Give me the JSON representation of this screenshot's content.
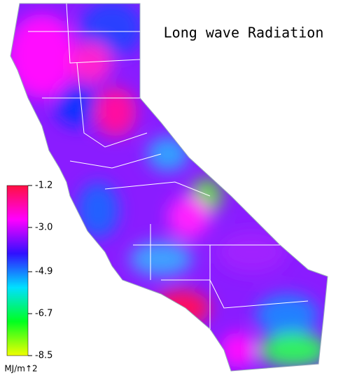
{
  "title": "Long wave Radiation",
  "colorbar": {
    "lim": [
      -8.5,
      -1.2
    ],
    "ticks": [
      -1.2,
      {
        "value": -3.0,
        "label": "-3.0"
      },
      -4.9,
      -6.7,
      -8.5
    ],
    "unit": "MJ/m↑2",
    "colors": [
      "#ff1040",
      "#ff00ff",
      "#3010ff",
      "#00e0ff",
      "#00ff20",
      "#f0ff00"
    ]
  }
}
